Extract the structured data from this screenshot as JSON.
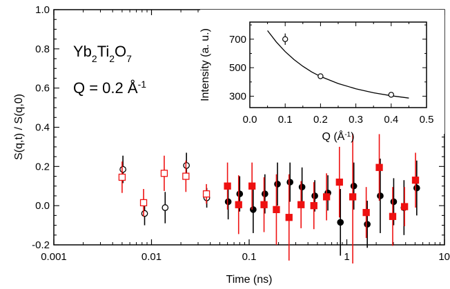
{
  "chart_data": [
    {
      "type": "scatter",
      "title": "",
      "annotations": [
        "Yb2Ti2O7",
        "Q = 0.2 Å-1"
      ],
      "xlabel": "Time (ns)",
      "ylabel": "S(q,t) / S(q,0)",
      "xscale": "log",
      "xlim": [
        0.001,
        10
      ],
      "ylim": [
        -0.2,
        1.0
      ],
      "x_ticklabels": [
        "0.001",
        "0.01",
        "0.1",
        "1",
        "10"
      ],
      "y_ticklabels": [
        "-0.2",
        "0.0",
        "0.2",
        "0.4",
        "0.6",
        "0.8",
        "1.0"
      ],
      "grid": false,
      "legend": "none",
      "series": [
        {
          "marker": "open-circle",
          "color": "#000000",
          "points": [
            {
              "x": 0.0051,
              "y": 0.185,
              "err": 0.07
            },
            {
              "x": 0.0085,
              "y": -0.04,
              "err": 0.06
            },
            {
              "x": 0.0138,
              "y": -0.01,
              "err": 0.08
            },
            {
              "x": 0.0228,
              "y": 0.205,
              "err": 0.065
            },
            {
              "x": 0.0368,
              "y": 0.04,
              "err": 0.05
            }
          ]
        },
        {
          "marker": "open-square",
          "color": "#ee1111",
          "points": [
            {
              "x": 0.005,
              "y": 0.145,
              "err": 0.08
            },
            {
              "x": 0.0083,
              "y": 0.015,
              "err": 0.07
            },
            {
              "x": 0.0135,
              "y": 0.165,
              "err": 0.09
            },
            {
              "x": 0.0225,
              "y": 0.15,
              "err": 0.08
            },
            {
              "x": 0.0365,
              "y": 0.06,
              "err": 0.05
            }
          ]
        },
        {
          "marker": "filled-circle",
          "color": "#000000",
          "points": [
            {
              "x": 0.061,
              "y": 0.02,
              "err": 0.09
            },
            {
              "x": 0.08,
              "y": 0.06,
              "err": 0.09
            },
            {
              "x": 0.11,
              "y": -0.02,
              "err": 0.12
            },
            {
              "x": 0.145,
              "y": 0.06,
              "err": 0.1
            },
            {
              "x": 0.195,
              "y": 0.11,
              "err": 0.11
            },
            {
              "x": 0.262,
              "y": 0.12,
              "err": 0.1
            },
            {
              "x": 0.348,
              "y": 0.095,
              "err": 0.1
            },
            {
              "x": 0.47,
              "y": 0.05,
              "err": 0.08
            },
            {
              "x": 0.64,
              "y": 0.065,
              "err": 0.09
            },
            {
              "x": 0.86,
              "y": -0.085,
              "err": 0.17
            },
            {
              "x": 1.18,
              "y": 0.1,
              "err": 0.12
            },
            {
              "x": 1.62,
              "y": -0.095,
              "err": 0.12
            },
            {
              "x": 2.2,
              "y": 0.05,
              "err": 0.19
            },
            {
              "x": 3.02,
              "y": 0.02,
              "err": 0.12
            },
            {
              "x": 3.85,
              "y": -0.01,
              "err": 0.14
            },
            {
              "x": 5.2,
              "y": 0.09,
              "err": 0.14
            }
          ]
        },
        {
          "marker": "filled-square",
          "color": "#ee1111",
          "points": [
            {
              "x": 0.06,
              "y": 0.1,
              "err": 0.12
            },
            {
              "x": 0.078,
              "y": 0.005,
              "err": 0.15
            },
            {
              "x": 0.107,
              "y": 0.1,
              "err": 0.12
            },
            {
              "x": 0.142,
              "y": 0.005,
              "err": 0.14
            },
            {
              "x": 0.19,
              "y": -0.02,
              "err": 0.18
            },
            {
              "x": 0.256,
              "y": -0.06,
              "err": 0.22
            },
            {
              "x": 0.34,
              "y": 0.005,
              "err": 0.12
            },
            {
              "x": 0.46,
              "y": 0.0,
              "err": 0.12
            },
            {
              "x": 0.62,
              "y": 0.045,
              "err": 0.12
            },
            {
              "x": 0.84,
              "y": 0.12,
              "err": 0.18
            },
            {
              "x": 1.15,
              "y": 0.045,
              "err": 0.34
            },
            {
              "x": 1.58,
              "y": -0.035,
              "err": 0.13
            },
            {
              "x": 2.15,
              "y": 0.195,
              "err": 0.17
            },
            {
              "x": 2.95,
              "y": -0.055,
              "err": 0.15
            },
            {
              "x": 3.9,
              "y": -0.005,
              "err": 0.1
            },
            {
              "x": 5.05,
              "y": 0.13,
              "err": 0.14
            }
          ]
        }
      ]
    },
    {
      "type": "scatter",
      "title": "",
      "xlabel": "Q (Å-1)",
      "ylabel": "Intensity (a. u.)",
      "xlim": [
        0.0,
        0.5
      ],
      "ylim": [
        220,
        820
      ],
      "x_ticklabels": [
        "0.0",
        "0.1",
        "0.2",
        "0.3",
        "0.4",
        "0.5"
      ],
      "y_ticklabels": [
        "300",
        "500",
        "700"
      ],
      "grid": false,
      "legend": "none",
      "series": [
        {
          "marker": "open-circle",
          "color": "#000000",
          "points": [
            {
              "x": 0.1,
              "y": 700,
              "err": 40
            },
            {
              "x": 0.2,
              "y": 440,
              "err": 0
            },
            {
              "x": 0.4,
              "y": 310,
              "err": 0
            }
          ]
        }
      ],
      "fit_curve": {
        "form": "exponential",
        "x": [
          0.05,
          0.075,
          0.1,
          0.125,
          0.15,
          0.175,
          0.2,
          0.25,
          0.3,
          0.35,
          0.4,
          0.45
        ],
        "y": [
          760,
          680,
          613,
          557,
          510,
          470,
          438,
          389,
          352,
          324,
          303,
          287
        ]
      }
    }
  ]
}
